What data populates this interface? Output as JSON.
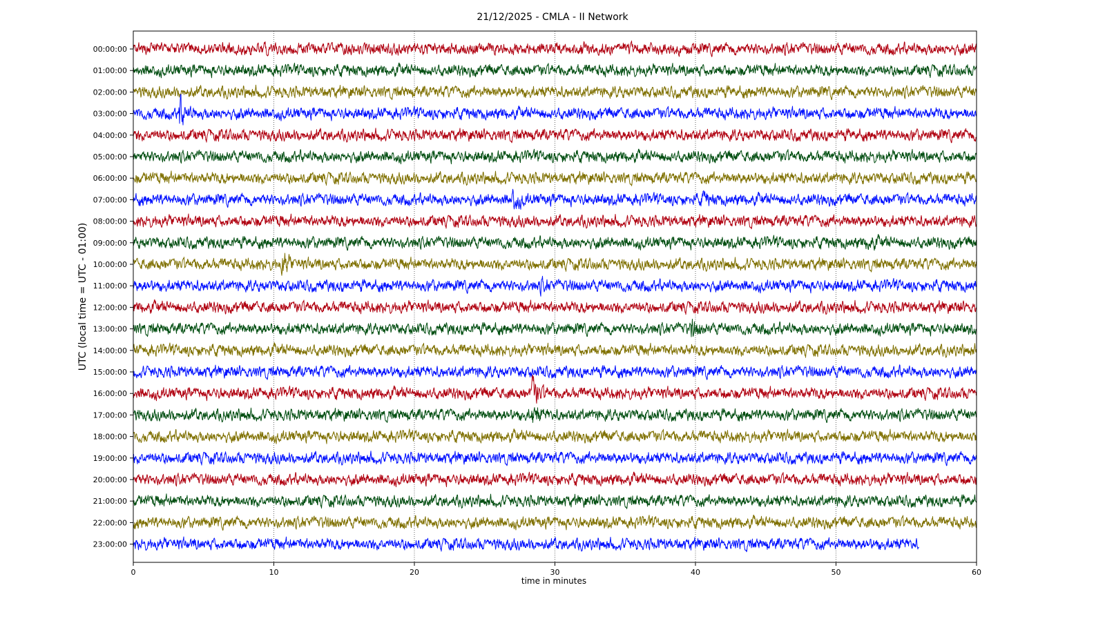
{
  "chart_data": {
    "type": "line",
    "title": "21/12/2025 - CMLA - II Network",
    "xlabel": "time in minutes",
    "ylabel": "UTC (local time = UTC - 01:00)",
    "xlim": [
      0,
      60
    ],
    "x_ticks": [
      0,
      10,
      20,
      30,
      40,
      50,
      60
    ],
    "grid": "vertical dotted at x ticks",
    "colors": [
      "#b00010",
      "#004d10",
      "#7f7000",
      "#0010ff"
    ],
    "rows": [
      {
        "label": "00:00:00",
        "end": 60
      },
      {
        "label": "01:00:00",
        "end": 60
      },
      {
        "label": "02:00:00",
        "end": 60
      },
      {
        "label": "03:00:00",
        "end": 60
      },
      {
        "label": "04:00:00",
        "end": 60
      },
      {
        "label": "05:00:00",
        "end": 60
      },
      {
        "label": "06:00:00",
        "end": 60
      },
      {
        "label": "07:00:00",
        "end": 60
      },
      {
        "label": "08:00:00",
        "end": 60
      },
      {
        "label": "09:00:00",
        "end": 60
      },
      {
        "label": "10:00:00",
        "end": 60
      },
      {
        "label": "11:00:00",
        "end": 60
      },
      {
        "label": "12:00:00",
        "end": 60
      },
      {
        "label": "13:00:00",
        "end": 60
      },
      {
        "label": "14:00:00",
        "end": 60
      },
      {
        "label": "15:00:00",
        "end": 60
      },
      {
        "label": "16:00:00",
        "end": 60
      },
      {
        "label": "17:00:00",
        "end": 60
      },
      {
        "label": "18:00:00",
        "end": 60
      },
      {
        "label": "19:00:00",
        "end": 60
      },
      {
        "label": "20:00:00",
        "end": 60
      },
      {
        "label": "21:00:00",
        "end": 60
      },
      {
        "label": "22:00:00",
        "end": 60
      },
      {
        "label": "23:00:00",
        "end": 55.9
      }
    ],
    "events": [
      {
        "row": 3,
        "minute": 3.2,
        "amplitude": 2.4
      },
      {
        "row": 7,
        "minute": 27.0,
        "amplitude": 1.8
      },
      {
        "row": 7,
        "minute": 40.5,
        "amplitude": 1.4
      },
      {
        "row": 9,
        "minute": 52.2,
        "amplitude": 1.5
      },
      {
        "row": 10,
        "minute": 10.6,
        "amplitude": 1.9
      },
      {
        "row": 11,
        "minute": 29.0,
        "amplitude": 1.3
      },
      {
        "row": 13,
        "minute": 39.7,
        "amplitude": 1.6
      },
      {
        "row": 16,
        "minute": 28.4,
        "amplitude": 2.2
      },
      {
        "row": 17,
        "minute": 28.4,
        "amplitude": 1.6
      }
    ]
  }
}
